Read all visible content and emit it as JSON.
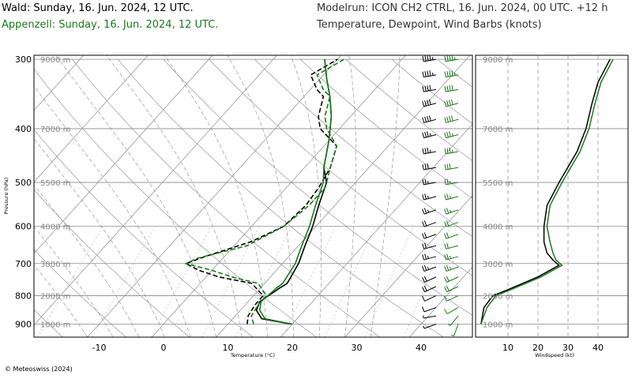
{
  "header": {
    "wald_title": "Wald: Sunday, 16. Jun. 2024, 12 UTC.",
    "appenzell_title": "Appenzell: Sunday, 16. Jun. 2024, 12 UTC.",
    "modelrun": "Modelrun: ICON CH2 CTRL, 16. Jun. 2024, 00 UTC. +12 h",
    "parameters": "Temperature, Dewpoint, Wind Barbs (knots)"
  },
  "copyright": "© Meteoswiss (2024)",
  "colors": {
    "wald": "#000000",
    "appenzell": "#1a7a1a",
    "grid": "#999999"
  },
  "chart_data": [
    {
      "type": "line",
      "subtype": "skew-T log-P diagram",
      "xlabel": "Temperature (°C)",
      "ylabel": "Pressure (hPa)",
      "xlim": [
        -20,
        48
      ],
      "ylim": [
        950,
        295
      ],
      "x_ticks": [
        -10,
        0,
        10,
        20,
        30,
        40
      ],
      "pressure_ticks": [
        300,
        400,
        500,
        600,
        700,
        800,
        900
      ],
      "height_labels": [
        {
          "p": 900,
          "label": "1000 m"
        },
        {
          "p": 800,
          "label": "2000 m"
        },
        {
          "p": 700,
          "label": "3000 m"
        },
        {
          "p": 600,
          "label": "4000 m"
        },
        {
          "p": 500,
          "label": "5500 m"
        },
        {
          "p": 400,
          "label": "7000 m"
        },
        {
          "p": 300,
          "label": "9000 m"
        }
      ],
      "series": [
        {
          "name": "Wald",
          "variable": "temperature",
          "points": [
            [
              19.8,
              900
            ],
            [
              14.5,
              880
            ],
            [
              12.5,
              850
            ],
            [
              11.8,
              820
            ],
            [
              13,
              775
            ],
            [
              13.5,
              760
            ],
            [
              12.5,
              700
            ],
            [
              11,
              650
            ],
            [
              9.5,
              600
            ],
            [
              7.5,
              550
            ],
            [
              5.5,
              500
            ],
            [
              3,
              470
            ],
            [
              0,
              420
            ],
            [
              -3,
              380
            ],
            [
              -6,
              350
            ],
            [
              -9,
              325
            ],
            [
              -12,
              300
            ]
          ]
        },
        {
          "name": "Wald",
          "variable": "dewpoint",
          "points": [
            [
              13,
              900
            ],
            [
              12,
              870
            ],
            [
              11.5,
              830
            ],
            [
              11.5,
              800
            ],
            [
              8,
              760
            ],
            [
              2,
              740
            ],
            [
              -2,
              720
            ],
            [
              -5,
              700
            ],
            [
              -3,
              680
            ],
            [
              2,
              640
            ],
            [
              5,
              600
            ],
            [
              5.5,
              550
            ],
            [
              5,
              510
            ],
            [
              4,
              470
            ],
            [
              2,
              430
            ],
            [
              -3,
              400
            ],
            [
              -5,
              380
            ],
            [
              -7,
              350
            ],
            [
              -9,
              340
            ],
            [
              -12,
              320
            ],
            [
              -11,
              310
            ],
            [
              -10,
              300
            ]
          ]
        },
        {
          "name": "Appenzell",
          "variable": "temperature",
          "points": [
            [
              20,
              900
            ],
            [
              15,
              880
            ],
            [
              13,
              850
            ],
            [
              12,
              820
            ],
            [
              12.5,
              775
            ],
            [
              12.8,
              760
            ],
            [
              12,
              700
            ],
            [
              10.5,
              650
            ],
            [
              9,
              600
            ],
            [
              7,
              550
            ],
            [
              5,
              500
            ],
            [
              3,
              470
            ],
            [
              0,
              420
            ],
            [
              -3,
              380
            ],
            [
              -6,
              350
            ],
            [
              -9,
              325
            ],
            [
              -12,
              300
            ]
          ]
        },
        {
          "name": "Appenzell",
          "variable": "dewpoint",
          "points": [
            [
              14,
              900
            ],
            [
              12.5,
              870
            ],
            [
              12,
              830
            ],
            [
              12,
              800
            ],
            [
              9,
              760
            ],
            [
              4,
              740
            ],
            [
              0,
              720
            ],
            [
              -5,
              700
            ],
            [
              -4,
              685
            ],
            [
              2,
              650
            ],
            [
              5,
              600
            ],
            [
              6,
              550
            ],
            [
              6,
              510
            ],
            [
              4,
              470
            ],
            [
              2,
              430
            ],
            [
              -2,
              400
            ],
            [
              -4,
              380
            ],
            [
              -6,
              350
            ],
            [
              -8,
              340
            ],
            [
              -11,
              320
            ],
            [
              -10,
              310
            ],
            [
              -9,
              300
            ]
          ]
        }
      ]
    },
    {
      "type": "line",
      "xlabel": "Windspeed (kt)",
      "xlim": [
        0,
        46
      ],
      "x_ticks": [
        10,
        20,
        30,
        40
      ],
      "height_labels": [
        "1000 m",
        "2000 m",
        "3000 m",
        "4000 m",
        "5500 m",
        "7000 m",
        "9000 m"
      ],
      "series": [
        {
          "name": "Wald",
          "points": [
            [
              1,
              900
            ],
            [
              2,
              840
            ],
            [
              5,
              800
            ],
            [
              10,
              780
            ],
            [
              20,
              740
            ],
            [
              27,
              705
            ],
            [
              25,
              690
            ],
            [
              23,
              670
            ],
            [
              22,
              640
            ],
            [
              22,
              600
            ],
            [
              23,
              550
            ],
            [
              27,
              500
            ],
            [
              33,
              440
            ],
            [
              36,
              400
            ],
            [
              38,
              360
            ],
            [
              40,
              330
            ],
            [
              44,
              300
            ]
          ]
        },
        {
          "name": "Appenzell",
          "points": [
            [
              1,
              900
            ],
            [
              3,
              840
            ],
            [
              6,
              800
            ],
            [
              11,
              780
            ],
            [
              21,
              740
            ],
            [
              28,
              705
            ],
            [
              26,
              690
            ],
            [
              25,
              670
            ],
            [
              24,
              640
            ],
            [
              23,
              600
            ],
            [
              24,
              550
            ],
            [
              28,
              500
            ],
            [
              34,
              440
            ],
            [
              37,
              400
            ],
            [
              39,
              360
            ],
            [
              41,
              330
            ],
            [
              45,
              300
            ]
          ]
        }
      ]
    }
  ],
  "wind_barbs": [
    {
      "name": "Wald",
      "levels": [
        {
          "p": 900,
          "dir": 250,
          "spd": 5
        },
        {
          "p": 870,
          "dir": 260,
          "spd": 5
        },
        {
          "p": 840,
          "dir": 250,
          "spd": 10
        },
        {
          "p": 800,
          "dir": 245,
          "spd": 10
        },
        {
          "p": 770,
          "dir": 245,
          "spd": 20
        },
        {
          "p": 740,
          "dir": 245,
          "spd": 20
        },
        {
          "p": 710,
          "dir": 250,
          "spd": 25
        },
        {
          "p": 680,
          "dir": 255,
          "spd": 25
        },
        {
          "p": 650,
          "dir": 255,
          "spd": 20
        },
        {
          "p": 620,
          "dir": 250,
          "spd": 20
        },
        {
          "p": 590,
          "dir": 250,
          "spd": 20
        },
        {
          "p": 560,
          "dir": 250,
          "spd": 25
        },
        {
          "p": 530,
          "dir": 255,
          "spd": 25
        },
        {
          "p": 500,
          "dir": 260,
          "spd": 25
        },
        {
          "p": 470,
          "dir": 260,
          "spd": 30
        },
        {
          "p": 440,
          "dir": 260,
          "spd": 35
        },
        {
          "p": 410,
          "dir": 255,
          "spd": 35
        },
        {
          "p": 385,
          "dir": 255,
          "spd": 40
        },
        {
          "p": 360,
          "dir": 255,
          "spd": 40
        },
        {
          "p": 340,
          "dir": 260,
          "spd": 40
        },
        {
          "p": 320,
          "dir": 260,
          "spd": 45
        },
        {
          "p": 300,
          "dir": 260,
          "spd": 45
        }
      ]
    },
    {
      "name": "Appenzell",
      "levels": [
        {
          "p": 900,
          "dir": 200,
          "spd": 5
        },
        {
          "p": 870,
          "dir": 220,
          "spd": 5
        },
        {
          "p": 840,
          "dir": 240,
          "spd": 10
        },
        {
          "p": 800,
          "dir": 245,
          "spd": 10
        },
        {
          "p": 770,
          "dir": 245,
          "spd": 20
        },
        {
          "p": 740,
          "dir": 245,
          "spd": 20
        },
        {
          "p": 710,
          "dir": 250,
          "spd": 25
        },
        {
          "p": 680,
          "dir": 255,
          "spd": 25
        },
        {
          "p": 650,
          "dir": 255,
          "spd": 20
        },
        {
          "p": 620,
          "dir": 250,
          "spd": 20
        },
        {
          "p": 590,
          "dir": 250,
          "spd": 20
        },
        {
          "p": 560,
          "dir": 250,
          "spd": 25
        },
        {
          "p": 530,
          "dir": 255,
          "spd": 25
        },
        {
          "p": 500,
          "dir": 260,
          "spd": 25
        },
        {
          "p": 470,
          "dir": 260,
          "spd": 30
        },
        {
          "p": 440,
          "dir": 260,
          "spd": 35
        },
        {
          "p": 410,
          "dir": 255,
          "spd": 35
        },
        {
          "p": 385,
          "dir": 255,
          "spd": 40
        },
        {
          "p": 360,
          "dir": 255,
          "spd": 40
        },
        {
          "p": 340,
          "dir": 260,
          "spd": 40
        },
        {
          "p": 320,
          "dir": 260,
          "spd": 45
        },
        {
          "p": 300,
          "dir": 260,
          "spd": 45
        }
      ]
    }
  ]
}
